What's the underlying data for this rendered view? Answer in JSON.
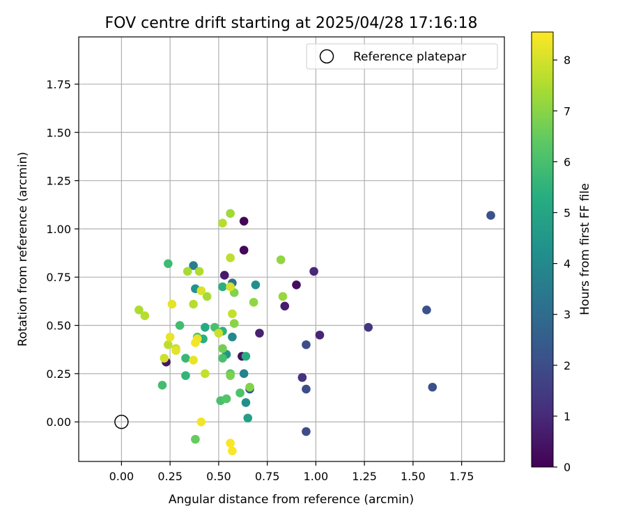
{
  "chart_data": {
    "type": "scatter",
    "title": "FOV centre drift starting at 2025/04/28 17:16:18",
    "xlabel": "Angular distance from reference (arcmin)",
    "ylabel": "Rotation from reference (arcmin)",
    "xlim": [
      -0.22,
      1.97
    ],
    "ylim": [
      -0.205,
      1.995
    ],
    "xticks": [
      "0.00",
      "0.25",
      "0.50",
      "0.75",
      "1.00",
      "1.25",
      "1.50",
      "1.75"
    ],
    "xtick_values": [
      0,
      0.25,
      0.5,
      0.75,
      1.0,
      1.25,
      1.5,
      1.75
    ],
    "yticks": [
      "0.00",
      "0.25",
      "0.50",
      "0.75",
      "1.00",
      "1.25",
      "1.50",
      "1.75"
    ],
    "ytick_values": [
      0,
      0.25,
      0.5,
      0.75,
      1.0,
      1.25,
      1.5,
      1.75
    ],
    "grid": true,
    "legend": {
      "position": "top-right",
      "entries": [
        "Reference platepar"
      ]
    },
    "reference_point": {
      "x": 0.0,
      "y": 0.0
    },
    "colorbar": {
      "label": "Hours from first FF file",
      "colormap": "viridis",
      "range": [
        0,
        8.55
      ],
      "ticks": [
        "0",
        "1",
        "2",
        "3",
        "4",
        "5",
        "6",
        "7",
        "8"
      ],
      "tick_values": [
        0,
        1,
        2,
        3,
        4,
        5,
        6,
        7,
        8
      ]
    },
    "points": [
      {
        "x": 0.63,
        "y": 1.04,
        "h": 0.1
      },
      {
        "x": 0.63,
        "y": 0.89,
        "h": 0.15
      },
      {
        "x": 0.9,
        "y": 0.71,
        "h": 0.3
      },
      {
        "x": 0.53,
        "y": 0.76,
        "h": 0.6
      },
      {
        "x": 0.84,
        "y": 0.6,
        "h": 0.7
      },
      {
        "x": 0.71,
        "y": 0.46,
        "h": 0.8
      },
      {
        "x": 0.62,
        "y": 0.34,
        "h": 0.4
      },
      {
        "x": 0.23,
        "y": 0.31,
        "h": 0.5
      },
      {
        "x": 0.99,
        "y": 0.78,
        "h": 1.0
      },
      {
        "x": 1.02,
        "y": 0.45,
        "h": 0.9
      },
      {
        "x": 0.93,
        "y": 0.23,
        "h": 1.2
      },
      {
        "x": 1.27,
        "y": 0.49,
        "h": 1.4
      },
      {
        "x": 0.95,
        "y": 0.4,
        "h": 2.0
      },
      {
        "x": 0.95,
        "y": 0.17,
        "h": 2.0
      },
      {
        "x": 0.95,
        "y": -0.05,
        "h": 2.0
      },
      {
        "x": 1.57,
        "y": 0.58,
        "h": 2.1
      },
      {
        "x": 1.6,
        "y": 0.18,
        "h": 2.1
      },
      {
        "x": 1.9,
        "y": 1.07,
        "h": 2.1
      },
      {
        "x": 0.66,
        "y": 0.17,
        "h": 2.3
      },
      {
        "x": 0.37,
        "y": 0.81,
        "h": 3.6
      },
      {
        "x": 0.57,
        "y": 0.72,
        "h": 3.2
      },
      {
        "x": 0.69,
        "y": 0.71,
        "h": 4.2
      },
      {
        "x": 0.38,
        "y": 0.69,
        "h": 4.3
      },
      {
        "x": 0.57,
        "y": 0.44,
        "h": 4.0
      },
      {
        "x": 0.54,
        "y": 0.35,
        "h": 4.5
      },
      {
        "x": 0.63,
        "y": 0.25,
        "h": 3.8
      },
      {
        "x": 0.64,
        "y": 0.1,
        "h": 4.2
      },
      {
        "x": 0.65,
        "y": 0.02,
        "h": 4.8
      },
      {
        "x": 0.43,
        "y": 0.49,
        "h": 5.2
      },
      {
        "x": 0.52,
        "y": 0.7,
        "h": 5.4
      },
      {
        "x": 0.64,
        "y": 0.34,
        "h": 5.3
      },
      {
        "x": 0.52,
        "y": 0.47,
        "h": 5.5
      },
      {
        "x": 0.42,
        "y": 0.43,
        "h": 5.4
      },
      {
        "x": 0.24,
        "y": 0.82,
        "h": 5.8
      },
      {
        "x": 0.3,
        "y": 0.5,
        "h": 5.9
      },
      {
        "x": 0.33,
        "y": 0.33,
        "h": 5.7
      },
      {
        "x": 0.33,
        "y": 0.24,
        "h": 5.6
      },
      {
        "x": 0.21,
        "y": 0.19,
        "h": 5.9
      },
      {
        "x": 0.48,
        "y": 0.49,
        "h": 6.0
      },
      {
        "x": 0.51,
        "y": 0.11,
        "h": 6.0
      },
      {
        "x": 0.54,
        "y": 0.12,
        "h": 6.2
      },
      {
        "x": 0.61,
        "y": 0.15,
        "h": 6.1
      },
      {
        "x": 0.52,
        "y": 0.33,
        "h": 6.0
      },
      {
        "x": 0.56,
        "y": 0.25,
        "h": 6.3
      },
      {
        "x": 0.39,
        "y": 0.44,
        "h": 6.3
      },
      {
        "x": 0.38,
        "y": -0.09,
        "h": 6.5
      },
      {
        "x": 0.52,
        "y": 0.38,
        "h": 6.7
      },
      {
        "x": 0.56,
        "y": 0.24,
        "h": 6.8
      },
      {
        "x": 0.58,
        "y": 0.67,
        "h": 6.9
      },
      {
        "x": 0.58,
        "y": 0.51,
        "h": 7.0
      },
      {
        "x": 0.66,
        "y": 0.18,
        "h": 6.9
      },
      {
        "x": 0.68,
        "y": 0.62,
        "h": 7.1
      },
      {
        "x": 0.82,
        "y": 0.84,
        "h": 7.1
      },
      {
        "x": 0.83,
        "y": 0.65,
        "h": 7.2
      },
      {
        "x": 0.56,
        "y": 1.08,
        "h": 7.3
      },
      {
        "x": 0.52,
        "y": 1.03,
        "h": 7.6
      },
      {
        "x": 0.56,
        "y": 0.85,
        "h": 7.7
      },
      {
        "x": 0.34,
        "y": 0.78,
        "h": 7.4
      },
      {
        "x": 0.4,
        "y": 0.78,
        "h": 7.5
      },
      {
        "x": 0.44,
        "y": 0.65,
        "h": 7.4
      },
      {
        "x": 0.37,
        "y": 0.61,
        "h": 7.6
      },
      {
        "x": 0.09,
        "y": 0.58,
        "h": 7.5
      },
      {
        "x": 0.12,
        "y": 0.55,
        "h": 7.6
      },
      {
        "x": 0.57,
        "y": 0.56,
        "h": 7.8
      },
      {
        "x": 0.56,
        "y": 0.7,
        "h": 8.0
      },
      {
        "x": 0.43,
        "y": 0.25,
        "h": 7.8
      },
      {
        "x": 0.22,
        "y": 0.33,
        "h": 7.9
      },
      {
        "x": 0.24,
        "y": 0.4,
        "h": 7.7
      },
      {
        "x": 0.5,
        "y": 0.46,
        "h": 7.9
      },
      {
        "x": 0.28,
        "y": 0.38,
        "h": 7.8
      },
      {
        "x": 0.26,
        "y": 0.61,
        "h": 8.2
      },
      {
        "x": 0.41,
        "y": 0.68,
        "h": 8.1
      },
      {
        "x": 0.25,
        "y": 0.44,
        "h": 8.3
      },
      {
        "x": 0.28,
        "y": 0.37,
        "h": 8.2
      },
      {
        "x": 0.39,
        "y": 0.43,
        "h": 8.3
      },
      {
        "x": 0.38,
        "y": 0.41,
        "h": 8.4
      },
      {
        "x": 0.37,
        "y": 0.32,
        "h": 8.3
      },
      {
        "x": 0.41,
        "y": 0.0,
        "h": 8.4
      },
      {
        "x": 0.56,
        "y": -0.11,
        "h": 8.5
      },
      {
        "x": 0.57,
        "y": -0.15,
        "h": 8.5
      }
    ]
  }
}
